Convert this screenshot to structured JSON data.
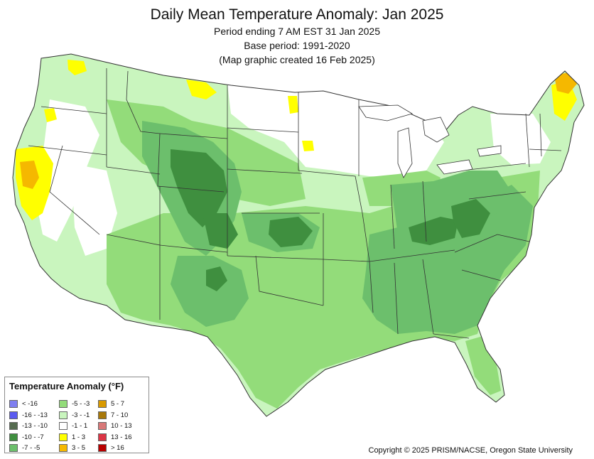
{
  "header": {
    "title": "Daily Mean Temperature Anomaly: Jan 2025",
    "line1": "Period ending 7 AM EST 31 Jan 2025",
    "line2": "Base period: 1991-2020",
    "line3": "(Map graphic created 16 Feb 2025)"
  },
  "legend": {
    "title": "Temperature Anomaly (°F)",
    "items": [
      {
        "label": "< -16",
        "color": "#7f7ff0"
      },
      {
        "label": "-16 - -13",
        "color": "#5a5af0"
      },
      {
        "label": "-13 - -10",
        "color": "#556b4f"
      },
      {
        "label": "-10 - -7",
        "color": "#3f8f3f"
      },
      {
        "label": "-7 - -5",
        "color": "#6cbf6c"
      },
      {
        "label": "-5 - -3",
        "color": "#93dc7a"
      },
      {
        "label": "-3 - -1",
        "color": "#c9f5be"
      },
      {
        "label": "-1 - 1",
        "color": "#ffffff"
      },
      {
        "label": "1 - 3",
        "color": "#ffff00"
      },
      {
        "label": "3 - 5",
        "color": "#f5b800"
      },
      {
        "label": "5 - 7",
        "color": "#d99a00"
      },
      {
        "label": "7 - 10",
        "color": "#a8780a"
      },
      {
        "label": "10 - 13",
        "color": "#d87878"
      },
      {
        "label": "13 - 16",
        "color": "#dc3545"
      },
      {
        "label": "> 16",
        "color": "#b80000"
      }
    ]
  },
  "footer": {
    "copyright": "Copyright © 2025 PRISM/NACSE, Oregon State University"
  }
}
